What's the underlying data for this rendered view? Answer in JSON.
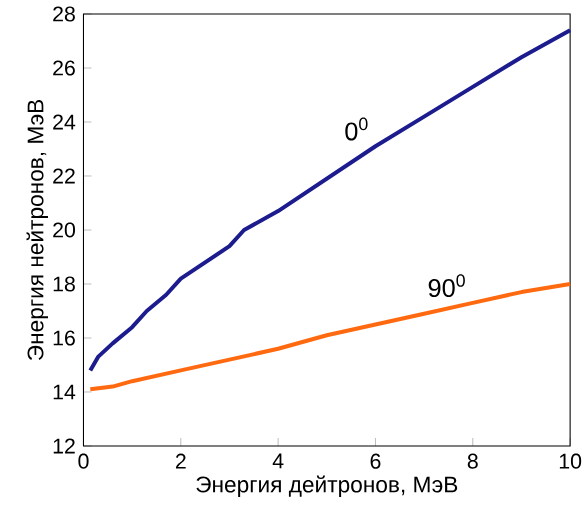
{
  "chart_data": {
    "type": "line",
    "xlabel": "Энергия дейтронов, МэВ",
    "ylabel": "Энергия нейтронов, МэВ",
    "xlim": [
      0,
      10
    ],
    "ylim": [
      12,
      28
    ],
    "xticks": [
      0,
      2,
      4,
      6,
      8,
      10
    ],
    "yticks": [
      12,
      14,
      16,
      18,
      20,
      22,
      24,
      26,
      28
    ],
    "grid": false,
    "legend": false,
    "marker": "none",
    "line_style": "solid",
    "series": [
      {
        "name": "0$^{0}$",
        "color": "#1c1c8e",
        "x": [
          0.14,
          0.3,
          0.6,
          1.0,
          1.3,
          1.7,
          2,
          3,
          3.3,
          4,
          5,
          6,
          7,
          8,
          9,
          10
        ],
        "values": [
          14.8,
          15.3,
          15.8,
          16.4,
          17.0,
          17.6,
          18.2,
          19.4,
          20.0,
          20.7,
          21.9,
          23.1,
          24.2,
          25.3,
          26.4,
          27.4
        ]
      },
      {
        "name": "90$^{0}$",
        "color": "#ff6a10",
        "x": [
          0.14,
          0.6,
          1,
          2,
          3,
          4,
          5,
          6,
          7,
          8,
          9,
          10
        ],
        "values": [
          14.1,
          14.2,
          14.4,
          14.8,
          15.2,
          15.6,
          16.1,
          16.5,
          16.9,
          17.3,
          17.7,
          18.0
        ]
      }
    ]
  }
}
